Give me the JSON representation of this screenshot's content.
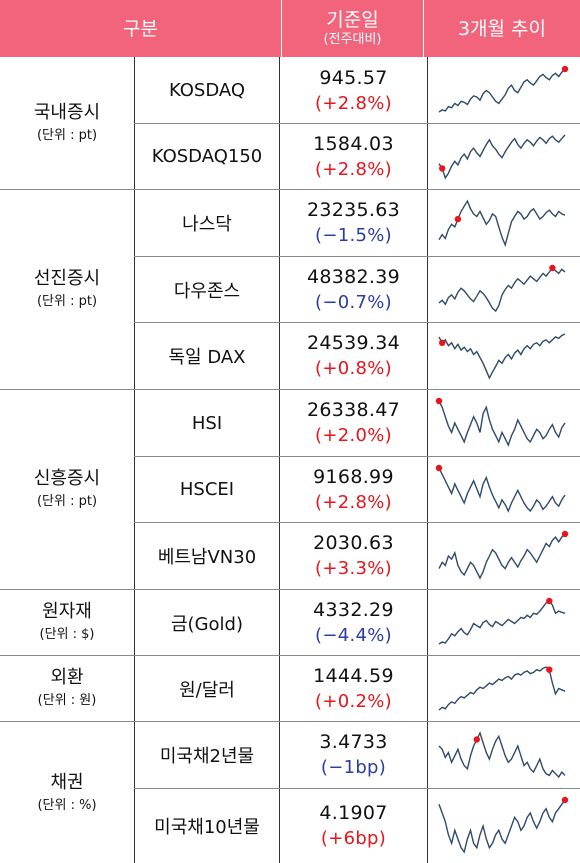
{
  "header": {
    "category": "구분",
    "base_date": "기준일",
    "base_date_sub": "(전주대비)",
    "trend": "3개월 추이"
  },
  "groups": [
    {
      "name": "국내증시",
      "unit": "(단위 : pt)"
    },
    {
      "name": "선진증시",
      "unit": "(단위 : pt)"
    },
    {
      "name": "신흥증시",
      "unit": "(단위 : pt)"
    },
    {
      "name": "원자재",
      "unit": "(단위 : $)"
    },
    {
      "name": "외환",
      "unit": "(단위 : 원)"
    },
    {
      "name": "채권",
      "unit": "(단위 : %)"
    }
  ],
  "colors": {
    "header_bg": "#f2637c",
    "up": "#e8151c",
    "down": "#2a3da6",
    "sparkline": "#2f4a6b",
    "marker": "#e8151c"
  },
  "rows": [
    {
      "item": "KOSDAQ",
      "value": "945.57",
      "change": "(+2.8%)",
      "direction": "up",
      "trend": [
        30,
        32,
        31,
        35,
        34,
        38,
        36,
        40,
        39,
        37,
        42,
        45,
        44,
        41,
        47,
        50,
        48,
        44,
        40,
        38,
        42,
        46,
        52,
        55,
        50,
        48,
        53,
        58,
        60,
        57,
        55,
        59,
        63,
        65,
        62,
        60,
        64,
        66,
        63,
        67,
        70
      ]
    },
    {
      "item": "KOSDAQ150",
      "value": "1584.03",
      "change": "(+2.8%)",
      "direction": "up",
      "trend": [
        42,
        38,
        30,
        34,
        40,
        44,
        41,
        47,
        50,
        46,
        52,
        55,
        51,
        48,
        53,
        58,
        62,
        57,
        54,
        50,
        47,
        52,
        56,
        60,
        63,
        58,
        55,
        59,
        62,
        60,
        57,
        61,
        64,
        62,
        59,
        63,
        65,
        62,
        60,
        63,
        66
      ]
    },
    {
      "item": "나스닥",
      "value": "23235.63",
      "change": "(−1.5%)",
      "direction": "down",
      "trend": [
        40,
        44,
        41,
        48,
        52,
        50,
        56,
        62,
        66,
        70,
        64,
        60,
        58,
        62,
        57,
        52,
        55,
        60,
        58,
        50,
        42,
        36,
        45,
        54,
        58,
        62,
        60,
        56,
        58,
        62,
        64,
        60,
        56,
        58,
        61,
        63,
        60,
        58,
        62,
        60,
        59
      ]
    },
    {
      "item": "다우존스",
      "value": "48382.39",
      "change": "(−0.7%)",
      "direction": "down",
      "trend": [
        44,
        46,
        43,
        48,
        50,
        47,
        52,
        55,
        53,
        50,
        47,
        45,
        49,
        53,
        51,
        48,
        44,
        40,
        38,
        42,
        50,
        54,
        57,
        55,
        59,
        62,
        60,
        58,
        61,
        64,
        62,
        60,
        63,
        66,
        64,
        67,
        70,
        68,
        66,
        69,
        67
      ]
    },
    {
      "item": "독일 DAX",
      "value": "24539.34",
      "change": "(+0.8%)",
      "direction": "up",
      "trend": [
        68,
        64,
        66,
        62,
        64,
        60,
        63,
        59,
        61,
        58,
        60,
        56,
        58,
        54,
        50,
        45,
        40,
        44,
        48,
        52,
        50,
        54,
        56,
        53,
        57,
        59,
        56,
        60,
        62,
        60,
        63,
        64,
        62,
        65,
        66,
        64,
        66,
        68,
        67,
        69,
        70
      ]
    },
    {
      "item": "HSI",
      "value": "26338.47",
      "change": "(+2.0%)",
      "direction": "up",
      "trend": [
        70,
        66,
        60,
        54,
        50,
        56,
        52,
        48,
        44,
        50,
        55,
        60,
        56,
        50,
        62,
        66,
        58,
        52,
        48,
        44,
        50,
        46,
        42,
        48,
        52,
        58,
        54,
        50,
        46,
        44,
        48,
        52,
        50,
        46,
        48,
        52,
        55,
        50,
        47,
        53,
        56
      ]
    },
    {
      "item": "HSCEI",
      "value": "9168.99",
      "change": "(+2.8%)",
      "direction": "up",
      "trend": [
        70,
        66,
        62,
        58,
        54,
        60,
        56,
        52,
        48,
        54,
        58,
        62,
        57,
        52,
        60,
        64,
        58,
        53,
        49,
        45,
        50,
        47,
        43,
        48,
        52,
        56,
        52,
        48,
        45,
        43,
        46,
        50,
        48,
        44,
        46,
        49,
        52,
        48,
        46,
        50,
        53
      ]
    },
    {
      "item": "베트남VN30",
      "value": "2030.63",
      "change": "(+3.3%)",
      "direction": "up",
      "trend": [
        48,
        52,
        50,
        56,
        54,
        58,
        50,
        46,
        44,
        48,
        52,
        50,
        46,
        42,
        46,
        52,
        56,
        60,
        58,
        54,
        50,
        48,
        52,
        55,
        52,
        49,
        53,
        56,
        60,
        58,
        55,
        52,
        56,
        60,
        64,
        62,
        66,
        68,
        65,
        68,
        70
      ]
    },
    {
      "item": "금(Gold)",
      "value": "4332.29",
      "change": "(−4.4%)",
      "direction": "down",
      "trend": [
        30,
        32,
        31,
        35,
        40,
        38,
        42,
        45,
        41,
        39,
        44,
        50,
        48,
        46,
        51,
        53,
        49,
        47,
        52,
        50,
        48,
        51,
        54,
        52,
        50,
        53,
        56,
        55,
        58,
        56,
        60,
        59,
        62,
        66,
        70,
        72,
        68,
        60,
        62,
        61,
        60
      ]
    },
    {
      "item": "원/달러",
      "value": "1444.59",
      "change": "(+0.2%)",
      "direction": "up",
      "trend": [
        40,
        42,
        41,
        44,
        46,
        45,
        48,
        50,
        49,
        51,
        53,
        52,
        55,
        57,
        56,
        58,
        60,
        59,
        61,
        63,
        62,
        64,
        65,
        63,
        66,
        67,
        66,
        68,
        69,
        67,
        68,
        70,
        69,
        71,
        72,
        70,
        60,
        52,
        56,
        55,
        54
      ]
    },
    {
      "item": "미국채2년물",
      "value": "3.4733",
      "change": "(−1bp)",
      "direction": "down",
      "trend": [
        62,
        60,
        55,
        58,
        52,
        56,
        60,
        54,
        50,
        48,
        56,
        62,
        66,
        70,
        64,
        58,
        54,
        60,
        65,
        68,
        62,
        56,
        52,
        54,
        58,
        62,
        56,
        50,
        52,
        48,
        46,
        50,
        54,
        48,
        45,
        44,
        47,
        45,
        43,
        46,
        44
      ]
    },
    {
      "item": "미국채10년물",
      "value": "4.1907",
      "change": "(+6bp)",
      "direction": "up",
      "trend": [
        66,
        62,
        58,
        52,
        48,
        54,
        50,
        46,
        44,
        50,
        54,
        48,
        46,
        52,
        56,
        50,
        46,
        48,
        52,
        54,
        50,
        48,
        52,
        56,
        60,
        58,
        54,
        56,
        60,
        62,
        58,
        55,
        58,
        62,
        64,
        60,
        58,
        62,
        64,
        66,
        68
      ]
    }
  ],
  "markers": [
    {
      "row": 0,
      "at": "end"
    }
  ]
}
